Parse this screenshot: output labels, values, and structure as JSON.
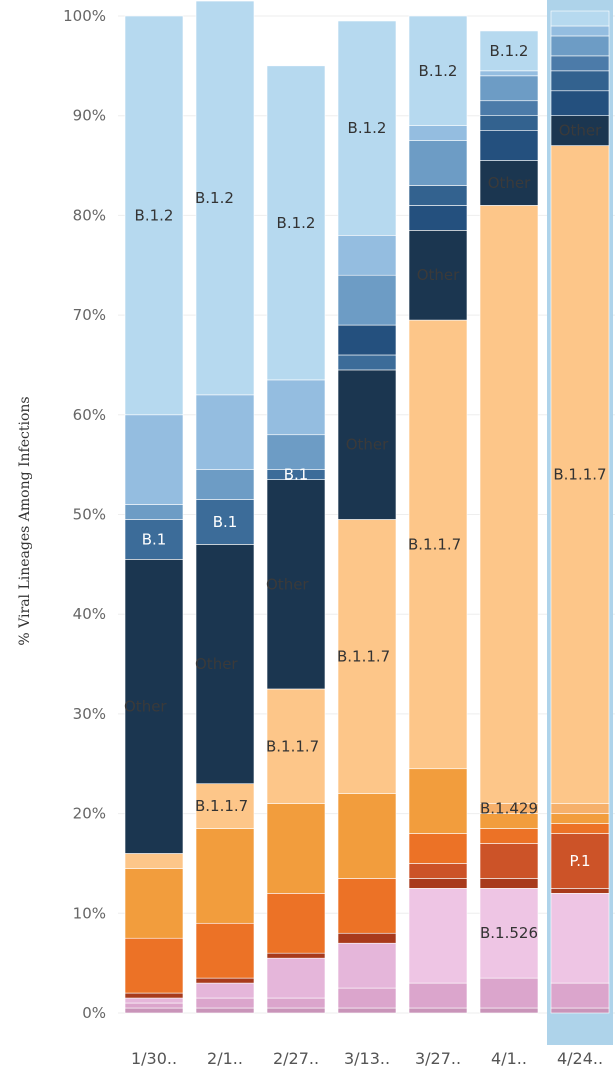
{
  "chart_data": {
    "type": "bar",
    "stacked": true,
    "ylabel": "% Viral Lineages Among Infections",
    "xlabel": "",
    "ylim": [
      0,
      100
    ],
    "yticks": [
      "0%",
      "10%",
      "20%",
      "30%",
      "40%",
      "50%",
      "60%",
      "70%",
      "80%",
      "90%",
      "100%"
    ],
    "grid": true,
    "categories": [
      "1/30..",
      "2/1..",
      "2/27..",
      "3/13..",
      "3/27..",
      "4/1..",
      "4/24.."
    ],
    "highlighted_category": "4/24..",
    "highlight_color": "#aed3ea",
    "stack_order_bottom_to_top": [
      "Pink-1",
      "Pink-2",
      "Pink-3",
      "B.1.526",
      "Red-1",
      "P.1",
      "Orange-1",
      "Orange-2",
      "B.1.429",
      "B.1.1.7",
      "Other",
      "B.1",
      "Blue-1",
      "Blue-2",
      "Blue-3",
      "Blue-4",
      "Blue-5",
      "B.1.2"
    ],
    "series": [
      {
        "name": "Pink-1",
        "color": "#c994b9",
        "values": [
          0.5,
          0.5,
          0.5,
          0.5,
          0.5,
          0.5,
          0.5
        ]
      },
      {
        "name": "Pink-2",
        "color": "#dba5cc",
        "values": [
          0.5,
          1.0,
          1.0,
          2.0,
          2.5,
          3.0,
          2.5
        ]
      },
      {
        "name": "Pink-3",
        "color": "#e5b6da",
        "values": [
          0.5,
          1.5,
          4.0,
          4.5,
          0.0,
          0.0,
          0.0
        ]
      },
      {
        "name": "B.1.526",
        "color": "#eec5e4",
        "values": [
          0.0,
          0.0,
          0.0,
          0.0,
          9.5,
          9.0,
          9.0
        ]
      },
      {
        "name": "Red-1",
        "color": "#a83a1c",
        "values": [
          0.5,
          0.5,
          0.5,
          1.0,
          1.0,
          1.0,
          0.5
        ]
      },
      {
        "name": "P.1",
        "color": "#cc5328",
        "values": [
          0.0,
          0.0,
          0.0,
          0.0,
          1.5,
          3.5,
          5.5
        ]
      },
      {
        "name": "Orange-1",
        "color": "#ec7226",
        "values": [
          5.5,
          5.5,
          6.0,
          5.5,
          3.0,
          1.5,
          1.0
        ]
      },
      {
        "name": "Orange-2",
        "color": "#f29d3d",
        "values": [
          7.0,
          9.5,
          9.0,
          8.5,
          6.5,
          1.5,
          1.0
        ]
      },
      {
        "name": "B.1.429",
        "color": "#f6b06b",
        "values": [
          0.0,
          0.0,
          0.0,
          0.0,
          0.0,
          1.0,
          1.0
        ]
      },
      {
        "name": "B.1.1.7",
        "color": "#fdc689",
        "values": [
          1.5,
          4.5,
          11.5,
          27.5,
          45.0,
          60.0,
          66.0
        ]
      },
      {
        "name": "Other",
        "color": "#1b3650",
        "values": [
          29.5,
          24.0,
          21.0,
          15.0,
          9.0,
          4.5,
          3.0
        ]
      },
      {
        "name": "B.1",
        "color": "#3c6c99",
        "values": [
          4.0,
          4.5,
          1.0,
          1.5,
          0.0,
          0.0,
          0.0
        ]
      },
      {
        "name": "Blue-1",
        "color": "#24507e",
        "values": [
          0.0,
          0.0,
          0.0,
          3.0,
          2.5,
          3.0,
          2.5
        ]
      },
      {
        "name": "Blue-2",
        "color": "#33628f",
        "values": [
          0.0,
          0.0,
          0.0,
          0.0,
          2.0,
          1.5,
          2.0
        ]
      },
      {
        "name": "Blue-3",
        "color": "#4c7ba9",
        "values": [
          0.0,
          0.0,
          0.0,
          0.0,
          0.0,
          1.5,
          1.5
        ]
      },
      {
        "name": "Blue-4",
        "color": "#6d9cc5",
        "values": [
          1.5,
          3.0,
          3.5,
          5.0,
          4.5,
          2.5,
          2.0
        ]
      },
      {
        "name": "Blue-5",
        "color": "#94bde0",
        "values": [
          9.0,
          7.5,
          5.5,
          4.0,
          1.5,
          0.5,
          1.0
        ]
      },
      {
        "name": "B.1.2",
        "color": "#b6d9ef",
        "values": [
          40.0,
          39.5,
          31.5,
          21.5,
          11.0,
          4.0,
          1.5
        ]
      }
    ],
    "segment_labels": [
      {
        "category_index": 0,
        "series": "B.1",
        "text": "B.1",
        "text_color": "#ffffff"
      },
      {
        "category_index": 0,
        "series": "Other",
        "text": "Other",
        "text_color": "#3a3a3a",
        "position": "left"
      },
      {
        "category_index": 0,
        "series": "B.1.2",
        "text": "B.1.2",
        "text_color": "#333333"
      },
      {
        "category_index": 1,
        "series": "B.1",
        "text": "B.1",
        "text_color": "#ffffff"
      },
      {
        "category_index": 1,
        "series": "Other",
        "text": "Other",
        "text_color": "#3a3a3a",
        "position": "left"
      },
      {
        "category_index": 1,
        "series": "B.1.2",
        "text": "B.1.2",
        "text_color": "#333333",
        "position": "left"
      },
      {
        "category_index": 1,
        "series": "B.1.1.7",
        "text": "B.1.1.7",
        "text_color": "#333333",
        "position": "left"
      },
      {
        "category_index": 2,
        "series": "B.1",
        "text": "B.1",
        "text_color": "#ffffff"
      },
      {
        "category_index": 2,
        "series": "Other",
        "text": "Other",
        "text_color": "#3a3a3a",
        "position": "left"
      },
      {
        "category_index": 2,
        "series": "B.1.2",
        "text": "B.1.2",
        "text_color": "#333333"
      },
      {
        "category_index": 2,
        "series": "B.1.1.7",
        "text": "B.1.1.7",
        "text_color": "#333333",
        "position": "left"
      },
      {
        "category_index": 3,
        "series": "Other",
        "text": "Other",
        "text_color": "#3a3a3a"
      },
      {
        "category_index": 3,
        "series": "B.1.2",
        "text": "B.1.2",
        "text_color": "#333333"
      },
      {
        "category_index": 3,
        "series": "B.1.1.7",
        "text": "B.1.1.7",
        "text_color": "#333333",
        "position": "left"
      },
      {
        "category_index": 4,
        "series": "Other",
        "text": "Other",
        "text_color": "#3a3a3a"
      },
      {
        "category_index": 4,
        "series": "B.1.2",
        "text": "B.1.2",
        "text_color": "#333333"
      },
      {
        "category_index": 4,
        "series": "B.1.1.7",
        "text": "B.1.1.7",
        "text_color": "#333333",
        "position": "left"
      },
      {
        "category_index": 5,
        "series": "Other",
        "text": "Other",
        "text_color": "#3a3a3a"
      },
      {
        "category_index": 5,
        "series": "B.1.2",
        "text": "B.1.2",
        "text_color": "#333333"
      },
      {
        "category_index": 5,
        "series": "B.1.429",
        "text": "B.1.429",
        "text_color": "#333333"
      },
      {
        "category_index": 5,
        "series": "B.1.526",
        "text": "B.1.526",
        "text_color": "#333333"
      },
      {
        "category_index": 6,
        "series": "Other",
        "text": "Other",
        "text_color": "#3a3a3a"
      },
      {
        "category_index": 6,
        "series": "B.1.1.7",
        "text": "B.1.1.7",
        "text_color": "#333333"
      },
      {
        "category_index": 6,
        "series": "P.1",
        "text": "P.1",
        "text_color": "#ffffff"
      }
    ]
  }
}
